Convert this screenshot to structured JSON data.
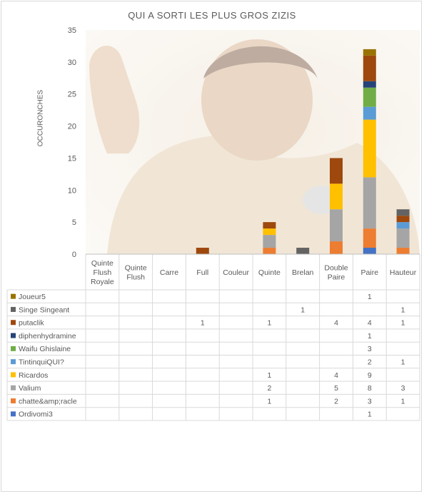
{
  "chart_data": {
    "type": "bar",
    "stacked": true,
    "title": "QUI A SORTI LES PLUS GROS ZIZIS",
    "ylabel": "OCCURONCHES",
    "xlabel": "",
    "ylim": [
      0,
      35
    ],
    "yticks": [
      0,
      5,
      10,
      15,
      20,
      25,
      30,
      35
    ],
    "grid": false,
    "legend": "data-table",
    "categories": [
      "Quinte Flush Royale",
      "Quinte Flush",
      "Carre",
      "Full",
      "Couleur",
      "Quinte",
      "Brelan",
      "Double Paire",
      "Paire",
      "Hauteur"
    ],
    "series": [
      {
        "name": "Ordivomi3",
        "color": "#4472c4",
        "values": [
          null,
          null,
          null,
          null,
          null,
          null,
          null,
          null,
          1,
          null
        ]
      },
      {
        "name": "chatte&amp;racle",
        "color": "#ed7d31",
        "values": [
          null,
          null,
          null,
          null,
          null,
          1,
          null,
          2,
          3,
          1
        ]
      },
      {
        "name": "Valium",
        "color": "#a5a5a5",
        "values": [
          null,
          null,
          null,
          null,
          null,
          2,
          null,
          5,
          8,
          3
        ]
      },
      {
        "name": "Ricardos",
        "color": "#ffc000",
        "values": [
          null,
          null,
          null,
          null,
          null,
          1,
          null,
          4,
          9,
          null
        ]
      },
      {
        "name": "TintinquiQUI?",
        "color": "#5b9bd5",
        "values": [
          null,
          null,
          null,
          null,
          null,
          null,
          null,
          null,
          2,
          1
        ]
      },
      {
        "name": "Waifu Ghislaine",
        "color": "#70ad47",
        "values": [
          null,
          null,
          null,
          null,
          null,
          null,
          null,
          null,
          3,
          null
        ]
      },
      {
        "name": "diphenhydramine",
        "color": "#264478",
        "values": [
          null,
          null,
          null,
          null,
          null,
          null,
          null,
          null,
          1,
          null
        ]
      },
      {
        "name": "putaclik",
        "color": "#9e480e",
        "values": [
          null,
          null,
          null,
          1,
          null,
          1,
          null,
          4,
          4,
          1
        ]
      },
      {
        "name": "Singe Singeant",
        "color": "#636363",
        "values": [
          null,
          null,
          null,
          null,
          null,
          null,
          1,
          null,
          null,
          1
        ]
      },
      {
        "name": "Joueur5",
        "color": "#997300",
        "values": [
          null,
          null,
          null,
          null,
          null,
          null,
          null,
          null,
          1,
          null
        ]
      }
    ]
  }
}
